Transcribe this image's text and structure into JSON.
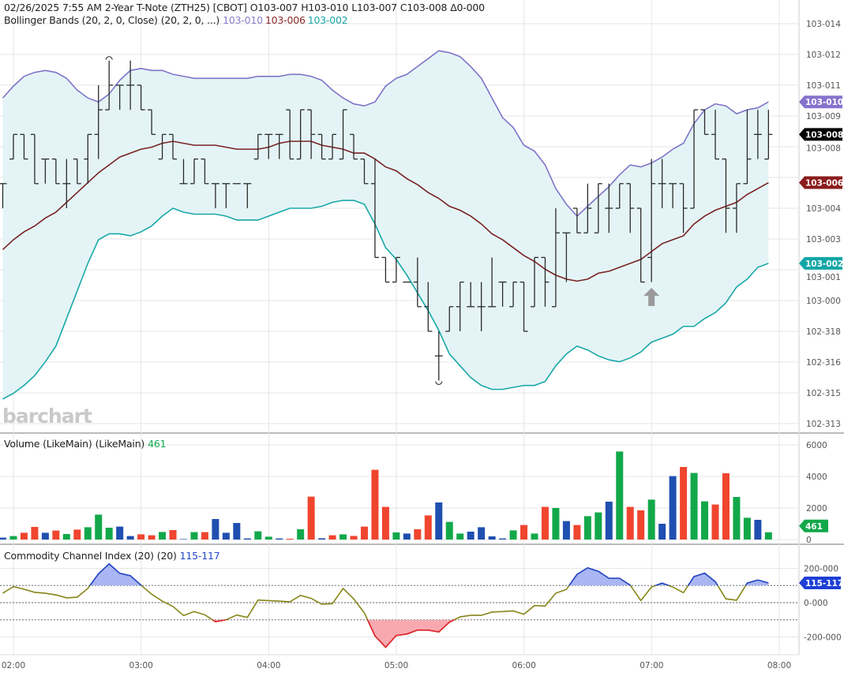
{
  "header": {
    "datetime": "02/26/2025 7:55 AM",
    "instrument": "2-Year T-Note (ZTH25) [CBOT]",
    "open": "O103-007",
    "high": "H103-010",
    "low": "L103-007",
    "close": "C103-008",
    "change": "Δ0-000"
  },
  "bollinger": {
    "label": "Bollinger Bands (20, 2, 0, Close)",
    "params": "(20, 2, 0, ...)",
    "upper": "103-010",
    "middle": "103-006",
    "lower": "103-002"
  },
  "volume_legend": {
    "label": "Volume (LikeMain)",
    "params": "(LikeMain)",
    "value": "461"
  },
  "cci_legend": {
    "label": "Commodity Channel Index (20)",
    "params": "(20)",
    "value": "115-117"
  },
  "watermark": "barchart",
  "colors": {
    "upper": "#7f74c8",
    "middle": "#7a2222",
    "lower": "#19a7a8",
    "band_fill": "#e4f4f6",
    "vol_up": "#12a84a",
    "vol_down": "#f0452e",
    "vol_flat": "#1f4fb0",
    "cci_line": "#86861a",
    "cci_over": "#2447d0",
    "cci_under": "#e5202f"
  },
  "chart_data": [
    {
      "type": "ohlc",
      "value_unit": "32nds above 103 (axis notation 103-xxx)",
      "x": [
        "01:55",
        "02:00",
        "02:05",
        "02:10",
        "02:15",
        "02:20",
        "02:25",
        "02:30",
        "02:35",
        "02:40",
        "02:45",
        "02:50",
        "02:55",
        "03:00",
        "03:05",
        "03:10",
        "03:15",
        "03:20",
        "03:25",
        "03:30",
        "03:35",
        "03:40",
        "03:45",
        "03:50",
        "03:55",
        "04:00",
        "04:05",
        "04:10",
        "04:15",
        "04:20",
        "04:25",
        "04:30",
        "04:35",
        "04:40",
        "04:45",
        "04:50",
        "04:55",
        "05:00",
        "05:05",
        "05:10",
        "05:15",
        "05:20",
        "05:25",
        "05:30",
        "05:35",
        "05:40",
        "05:45",
        "05:50",
        "05:55",
        "06:00",
        "06:05",
        "06:10",
        "06:15",
        "06:20",
        "06:25",
        "06:30",
        "06:35",
        "06:40",
        "06:45",
        "06:50",
        "06:55",
        "07:00",
        "07:05",
        "07:10",
        "07:15",
        "07:20",
        "07:25",
        "07:30",
        "07:35",
        "07:40",
        "07:45",
        "07:50",
        "07:55"
      ],
      "ohlc": [
        [
          0.625,
          0.625,
          0.5,
          0.625
        ],
        [
          0.75,
          0.875,
          0.75,
          0.875
        ],
        [
          0.875,
          0.875,
          0.75,
          0.75
        ],
        [
          0.875,
          0.875,
          0.625,
          0.625
        ],
        [
          0.75,
          0.75,
          0.625,
          0.75
        ],
        [
          0.75,
          0.75,
          0.625,
          0.625
        ],
        [
          0.625,
          0.75,
          0.5,
          0.625
        ],
        [
          0.75,
          0.75,
          0.625,
          0.625
        ],
        [
          0.75,
          0.875,
          0.625,
          0.875
        ],
        [
          0.875,
          1.125,
          0.75,
          1.0
        ],
        [
          1.0,
          1.25,
          1.0,
          1.125
        ],
        [
          1.125,
          1.125,
          1.0,
          1.125
        ],
        [
          1.125,
          1.25,
          1.0,
          1.125
        ],
        [
          1.125,
          1.125,
          1.0,
          1.0
        ],
        [
          1.0,
          1.0,
          0.875,
          0.875
        ],
        [
          0.75,
          0.875,
          0.75,
          0.875
        ],
        [
          0.875,
          0.875,
          0.75,
          0.75
        ],
        [
          0.625,
          0.75,
          0.625,
          0.625
        ],
        [
          0.625,
          0.75,
          0.625,
          0.75
        ],
        [
          0.75,
          0.75,
          0.625,
          0.625
        ],
        [
          0.625,
          0.625,
          0.5,
          0.625
        ],
        [
          0.625,
          0.625,
          0.5,
          0.625
        ],
        [
          0.625,
          0.625,
          0.625,
          0.625
        ],
        [
          0.625,
          0.625,
          0.5,
          0.625
        ],
        [
          0.75,
          0.875,
          0.75,
          0.875
        ],
        [
          0.875,
          0.875,
          0.75,
          0.875
        ],
        [
          0.875,
          0.875,
          0.75,
          0.875
        ],
        [
          1.0,
          1.0,
          0.75,
          0.75
        ],
        [
          0.75,
          1.0,
          0.75,
          1.0
        ],
        [
          1.0,
          1.0,
          0.75,
          0.875
        ],
        [
          0.875,
          0.875,
          0.75,
          0.75
        ],
        [
          0.75,
          0.875,
          0.75,
          0.875
        ],
        [
          0.75,
          1.0,
          0.75,
          1.0
        ],
        [
          0.875,
          0.875,
          0.75,
          0.75
        ],
        [
          0.75,
          0.75,
          0.625,
          0.625
        ],
        [
          0.625,
          0.75,
          0.25,
          0.25
        ],
        [
          0.25,
          0.25,
          0.125,
          0.125
        ],
        [
          0.125,
          0.25,
          0.125,
          0.25
        ],
        [
          0.125,
          0.125,
          0.125,
          0.125
        ],
        [
          0.125,
          0.25,
          0.0,
          0.0
        ],
        [
          0.0,
          0.125,
          -0.125,
          -0.125
        ],
        [
          -0.25,
          -0.125,
          -0.375,
          -0.25
        ],
        [
          -0.125,
          0.0,
          -0.125,
          0.0
        ],
        [
          0.0,
          0.125,
          -0.125,
          0.125
        ],
        [
          0.0,
          0.125,
          0.0,
          0.0
        ],
        [
          0.0,
          0.125,
          -0.125,
          0.0
        ],
        [
          0.0,
          0.25,
          0.0,
          0.0
        ],
        [
          0.125,
          0.125,
          0.0,
          0.125
        ],
        [
          0.0,
          0.125,
          0.0,
          0.125
        ],
        [
          0.125,
          0.125,
          -0.125,
          -0.125
        ],
        [
          0.0,
          0.25,
          0.0,
          0.25
        ],
        [
          0.25,
          0.25,
          0.0,
          0.125
        ],
        [
          0.0,
          0.5,
          0.0,
          0.375
        ],
        [
          0.375,
          0.375,
          0.125,
          0.375
        ],
        [
          0.5,
          0.5,
          0.375,
          0.375
        ],
        [
          0.375,
          0.625,
          0.375,
          0.5
        ],
        [
          0.375,
          0.625,
          0.375,
          0.625
        ],
        [
          0.5,
          0.625,
          0.375,
          0.5
        ],
        [
          0.5,
          0.625,
          0.5,
          0.625
        ],
        [
          0.625,
          0.625,
          0.375,
          0.5
        ],
        [
          0.5,
          0.5,
          0.125,
          0.125
        ],
        [
          0.25,
          0.75,
          0.125,
          0.625
        ],
        [
          0.625,
          0.75,
          0.5,
          0.625
        ],
        [
          0.625,
          0.625,
          0.5,
          0.625
        ],
        [
          0.625,
          0.625,
          0.375,
          0.5
        ],
        [
          0.5,
          1.0,
          0.5,
          1.0
        ],
        [
          1.0,
          1.0,
          0.875,
          0.875
        ],
        [
          0.875,
          1.0,
          0.75,
          0.75
        ],
        [
          0.75,
          0.75,
          0.375,
          0.5
        ],
        [
          0.5,
          0.625,
          0.375,
          0.625
        ],
        [
          0.625,
          1.0,
          0.625,
          0.75
        ],
        [
          0.875,
          1.0,
          0.75,
          0.875
        ],
        [
          0.75,
          1.0,
          0.75,
          0.875
        ]
      ],
      "bb_upper": [
        1.06,
        1.12,
        1.17,
        1.19,
        1.2,
        1.19,
        1.16,
        1.1,
        1.06,
        1.04,
        1.08,
        1.15,
        1.2,
        1.21,
        1.2,
        1.2,
        1.18,
        1.17,
        1.16,
        1.16,
        1.16,
        1.16,
        1.16,
        1.16,
        1.17,
        1.17,
        1.17,
        1.18,
        1.18,
        1.17,
        1.15,
        1.1,
        1.06,
        1.03,
        1.02,
        1.04,
        1.12,
        1.16,
        1.18,
        1.22,
        1.26,
        1.3,
        1.29,
        1.27,
        1.22,
        1.16,
        1.06,
        0.96,
        0.91,
        0.82,
        0.79,
        0.72,
        0.6,
        0.52,
        0.46,
        0.51,
        0.56,
        0.61,
        0.67,
        0.72,
        0.71,
        0.73,
        0.76,
        0.8,
        0.83,
        0.93,
        1.0,
        1.03,
        1.02,
        0.98,
        1.0,
        1.01,
        1.04
      ],
      "bb_middle": [
        0.29,
        0.34,
        0.38,
        0.41,
        0.45,
        0.48,
        0.53,
        0.58,
        0.63,
        0.68,
        0.72,
        0.76,
        0.78,
        0.8,
        0.81,
        0.83,
        0.84,
        0.83,
        0.82,
        0.82,
        0.82,
        0.81,
        0.8,
        0.8,
        0.8,
        0.81,
        0.83,
        0.84,
        0.84,
        0.84,
        0.82,
        0.81,
        0.8,
        0.78,
        0.78,
        0.75,
        0.71,
        0.69,
        0.65,
        0.62,
        0.58,
        0.55,
        0.51,
        0.49,
        0.46,
        0.42,
        0.37,
        0.34,
        0.3,
        0.26,
        0.23,
        0.19,
        0.16,
        0.14,
        0.13,
        0.14,
        0.17,
        0.18,
        0.2,
        0.22,
        0.24,
        0.28,
        0.32,
        0.34,
        0.36,
        0.42,
        0.46,
        0.49,
        0.51,
        0.53,
        0.57,
        0.6,
        0.63
      ],
      "bb_lower": [
        -0.47,
        -0.44,
        -0.4,
        -0.35,
        -0.28,
        -0.2,
        -0.06,
        0.08,
        0.22,
        0.34,
        0.37,
        0.37,
        0.36,
        0.38,
        0.41,
        0.46,
        0.5,
        0.48,
        0.47,
        0.47,
        0.47,
        0.46,
        0.44,
        0.44,
        0.44,
        0.46,
        0.48,
        0.5,
        0.5,
        0.5,
        0.51,
        0.53,
        0.54,
        0.54,
        0.52,
        0.42,
        0.3,
        0.24,
        0.16,
        0.07,
        -0.02,
        -0.12,
        -0.24,
        -0.3,
        -0.36,
        -0.4,
        -0.42,
        -0.42,
        -0.41,
        -0.4,
        -0.4,
        -0.38,
        -0.3,
        -0.24,
        -0.2,
        -0.22,
        -0.25,
        -0.27,
        -0.28,
        -0.26,
        -0.23,
        -0.18,
        -0.16,
        -0.14,
        -0.1,
        -0.1,
        -0.06,
        -0.03,
        0.02,
        0.1,
        0.14,
        0.2,
        0.22
      ],
      "y_ticks": [
        {
          "value": 1.4375,
          "label": "103-014"
        },
        {
          "value": 1.28125,
          "label": "103-012"
        },
        {
          "value": 1.125,
          "label": "103-011"
        },
        {
          "value": 0.96875,
          "label": "103-009"
        },
        {
          "value": 0.8125,
          "label": "103-008"
        },
        {
          "value": 0.5,
          "label": "103-004"
        },
        {
          "value": 0.34375,
          "label": "103-003"
        },
        {
          "value": 0.1875,
          "label": "103-001"
        },
        {
          "value": 0.03125,
          "label": "103-000"
        },
        {
          "value": -0.125,
          "label": "102-318"
        },
        {
          "value": -0.28125,
          "label": "102-316"
        },
        {
          "value": -0.4375,
          "label": "102-315"
        },
        {
          "value": -0.59375,
          "label": "102-313"
        }
      ],
      "extra_gridline": 0.65625,
      "last_badges": [
        {
          "label": "103-010",
          "value": 1.04,
          "color": "#8573cc"
        },
        {
          "label": "103-008",
          "value": 0.875,
          "color": "#000000"
        },
        {
          "label": "103-006",
          "value": 0.63,
          "color": "#8a1c1c"
        },
        {
          "label": "103-002",
          "value": 0.22,
          "color": "#13a6a6"
        }
      ],
      "markers": [
        {
          "x": "02:45",
          "type": "high-circle"
        },
        {
          "x": "05:20",
          "type": "low-circle"
        },
        {
          "x": "07:00",
          "type": "up-arrow"
        }
      ],
      "grid": true
    },
    {
      "type": "bar",
      "series_name": "Volume",
      "values": [
        120,
        220,
        430,
        800,
        430,
        570,
        350,
        630,
        780,
        1580,
        750,
        820,
        220,
        330,
        270,
        480,
        600,
        30,
        470,
        470,
        1300,
        430,
        1050,
        70,
        520,
        180,
        70,
        50,
        650,
        2720,
        80,
        270,
        330,
        230,
        820,
        4420,
        2070,
        450,
        380,
        650,
        1530,
        2350,
        1120,
        380,
        500,
        780,
        200,
        70,
        580,
        920,
        380,
        2070,
        2000,
        1170,
        920,
        1480,
        1720,
        2400,
        5580,
        2070,
        1850,
        2530,
        1000,
        4020,
        4600,
        4220,
        2420,
        2220,
        4200,
        2700,
        1380,
        1250,
        461
      ],
      "colors": [
        "flat",
        "up",
        "down",
        "down",
        "flat",
        "down",
        "up",
        "down",
        "up",
        "up",
        "up",
        "flat",
        "flat",
        "down",
        "down",
        "up",
        "down",
        "flat",
        "up",
        "down",
        "flat",
        "flat",
        "flat",
        "flat",
        "up",
        "up",
        "flat",
        "down",
        "up",
        "down",
        "flat",
        "down",
        "up",
        "down",
        "down",
        "down",
        "down",
        "up",
        "flat",
        "down",
        "down",
        "flat",
        "up",
        "up",
        "flat",
        "flat",
        "flat",
        "flat",
        "up",
        "down",
        "up",
        "down",
        "up",
        "flat",
        "down",
        "up",
        "up",
        "flat",
        "up",
        "down",
        "down",
        "up",
        "flat",
        "flat",
        "down",
        "up",
        "up",
        "down",
        "down",
        "up",
        "up",
        "flat",
        "up"
      ],
      "y_ticks": [
        6000,
        4000,
        2000,
        0
      ],
      "ylim": [
        0,
        6000
      ],
      "last_badge": "461"
    },
    {
      "type": "line",
      "series_name": "Commodity Channel Index (20)",
      "values": [
        55,
        94,
        78,
        60,
        55,
        45,
        28,
        32,
        83,
        168,
        226,
        171,
        157,
        102,
        49,
        9,
        -22,
        -75,
        -52,
        -71,
        -111,
        -100,
        -72,
        -86,
        15,
        12,
        9,
        5,
        42,
        25,
        -9,
        -6,
        83,
        22,
        -60,
        -194,
        -260,
        -192,
        -183,
        -160,
        -160,
        -171,
        -114,
        -83,
        -74,
        -74,
        -55,
        -52,
        -48,
        -68,
        -17,
        -20,
        55,
        77,
        165,
        203,
        183,
        142,
        142,
        102,
        12,
        91,
        114,
        91,
        58,
        152,
        172,
        122,
        22,
        14,
        114,
        132,
        115
      ],
      "y_ticks": [
        {
          "value": 200,
          "label": "200-000"
        },
        {
          "value": 0,
          "label": "0-000"
        },
        {
          "value": -200,
          "label": "-200-000"
        }
      ],
      "reference_lines": [
        100,
        0,
        -100
      ],
      "last_badge": "115-117"
    }
  ],
  "time_axis": [
    "02:00",
    "03:00",
    "04:00",
    "05:00",
    "06:00",
    "07:00",
    "08:00"
  ]
}
